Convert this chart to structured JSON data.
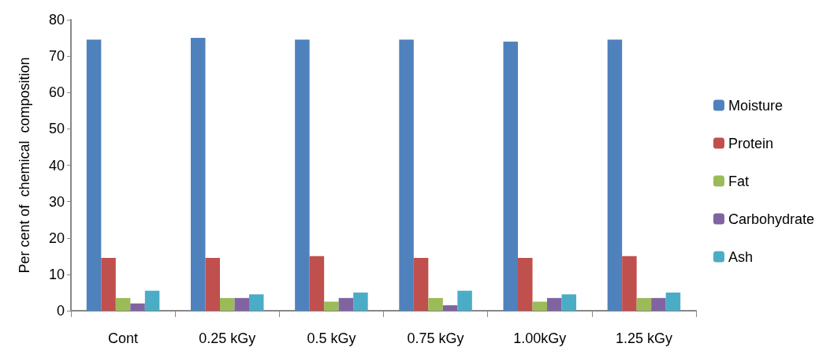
{
  "chart_data": {
    "type": "bar",
    "ylabel": "Per cent of  chemical  composition",
    "categories": [
      "Cont",
      "0.25 kGy",
      "0.5 kGy",
      "0.75 kGy",
      "1.00kGy",
      "1.25 kGy"
    ],
    "series": [
      {
        "name": "Moisture",
        "color": "#4f81bd",
        "values": [
          74.5,
          75,
          74.5,
          74.5,
          74,
          74.5
        ]
      },
      {
        "name": "Protein",
        "color": "#c0504d",
        "values": [
          14.5,
          14.5,
          15,
          14.5,
          14.5,
          15
        ]
      },
      {
        "name": "Fat",
        "color": "#9bbb59",
        "values": [
          3.5,
          3.5,
          2.5,
          3.5,
          2.5,
          3.5
        ]
      },
      {
        "name": "Carbohydrate",
        "color": "#8064a2",
        "values": [
          2,
          3.5,
          3.5,
          1.5,
          3.5,
          3.5
        ]
      },
      {
        "name": "Ash",
        "color": "#4bacc6",
        "values": [
          5.5,
          4.5,
          5,
          5.5,
          4.5,
          5
        ]
      }
    ],
    "ylim": [
      0,
      80
    ],
    "yticks": [
      0,
      10,
      20,
      30,
      40,
      50,
      60,
      70,
      80
    ],
    "grid": false,
    "legend": "right"
  }
}
